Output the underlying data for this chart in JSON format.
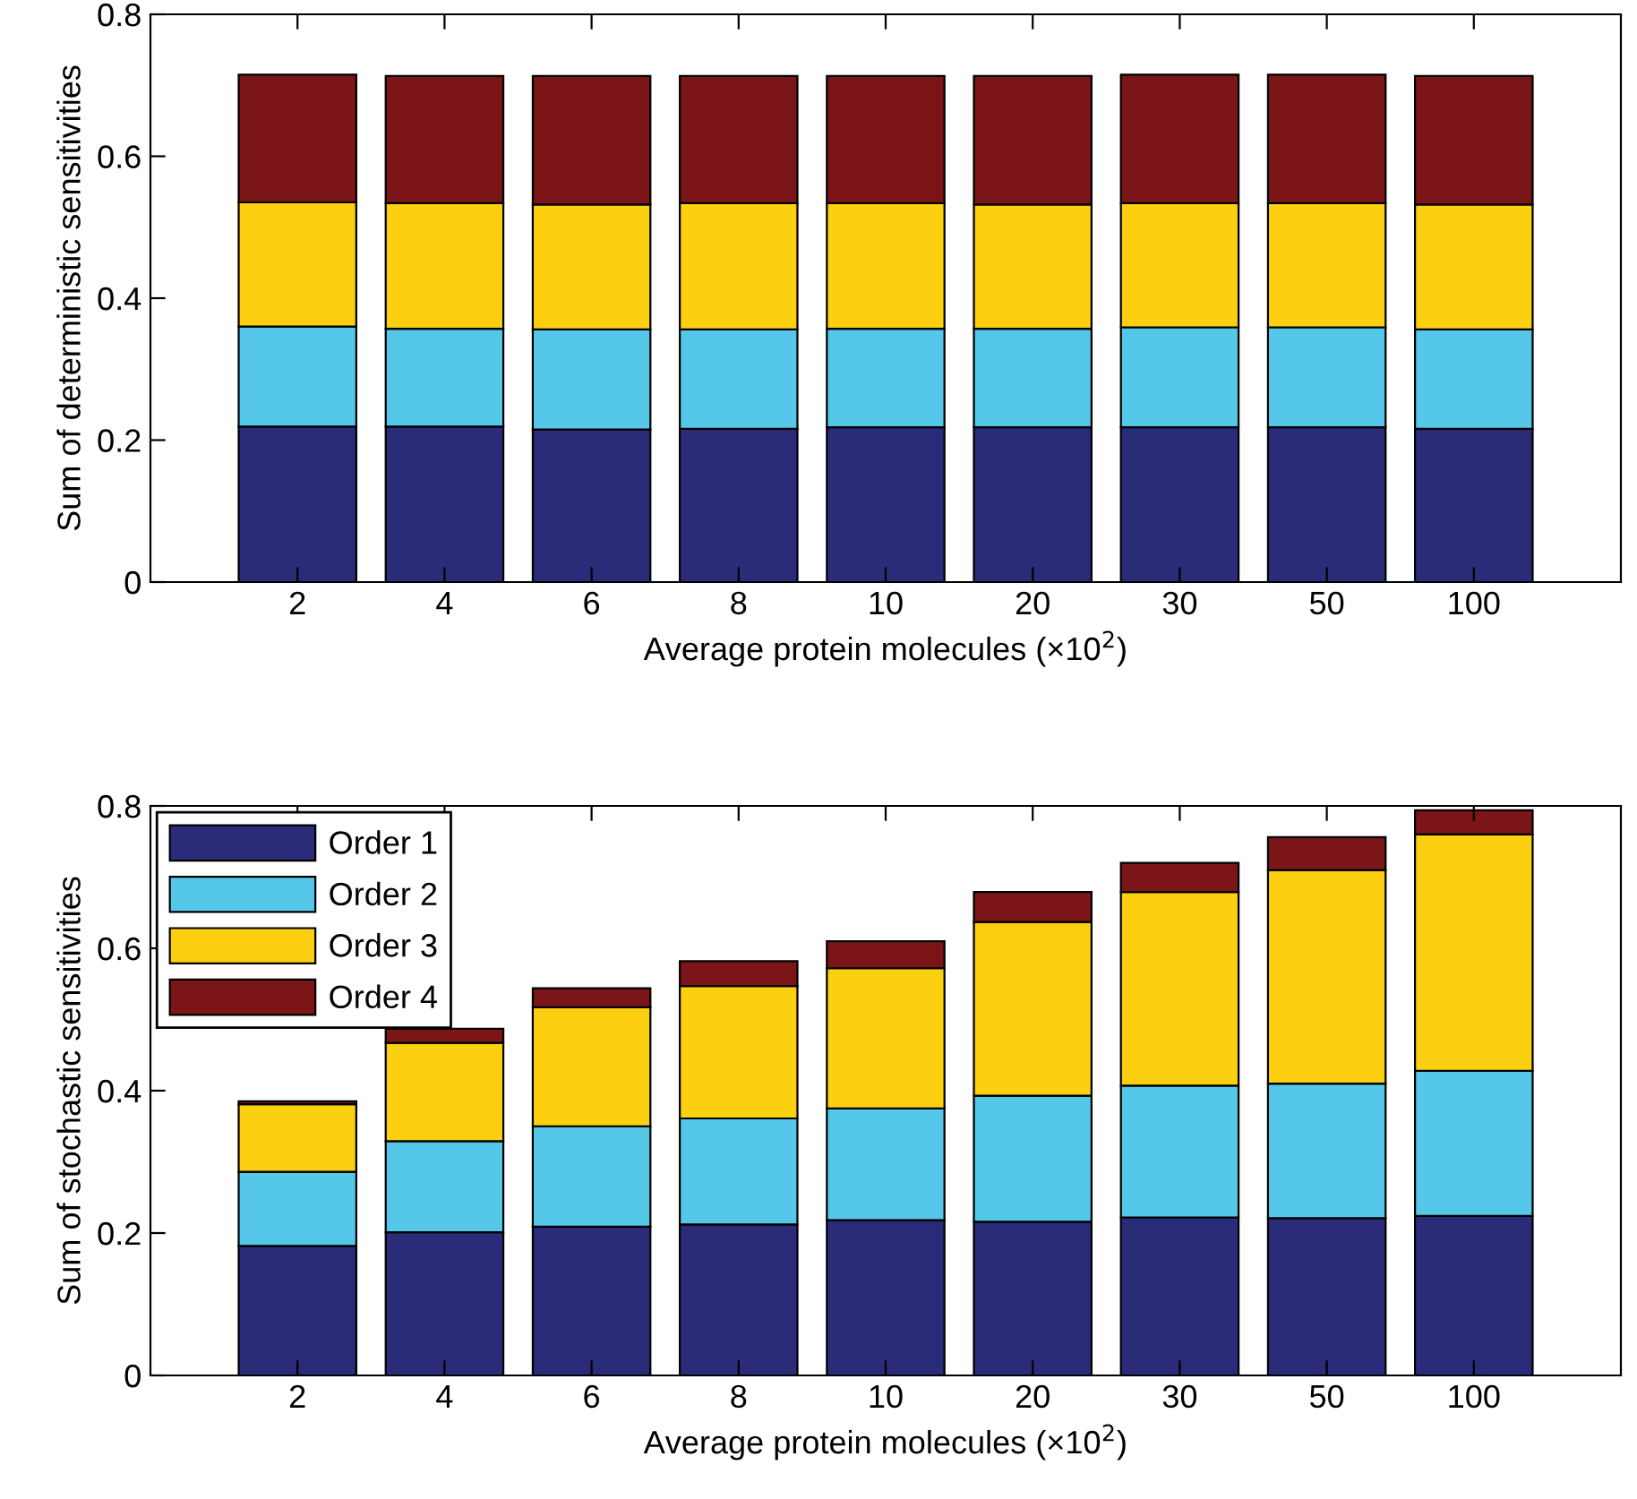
{
  "chart_data": [
    {
      "type": "bar",
      "stacked": true,
      "ylabel": "Sum of deterministic sensitivities",
      "xlabel": "Average protein molecules (×10$^{2}$)",
      "categories": [
        "2",
        "4",
        "6",
        "8",
        "10",
        "20",
        "30",
        "50",
        "100"
      ],
      "ylim": [
        0,
        0.8
      ],
      "yticks": [
        0,
        0.2,
        0.4,
        0.6,
        0.8
      ],
      "legend": false,
      "grid": false,
      "series": [
        {
          "color": "#2a2c7a",
          "values": [
            0.219,
            0.219,
            0.215,
            0.216,
            0.218,
            0.218,
            0.218,
            0.218,
            0.216
          ]
        },
        {
          "color": "#55c8ea",
          "values": [
            0.141,
            0.138,
            0.141,
            0.14,
            0.139,
            0.139,
            0.141,
            0.141,
            0.14
          ]
        },
        {
          "color": "#fccf10",
          "values": [
            0.175,
            0.177,
            0.176,
            0.178,
            0.177,
            0.175,
            0.175,
            0.175,
            0.176
          ]
        },
        {
          "color": "#7b1517",
          "values": [
            0.18,
            0.179,
            0.181,
            0.179,
            0.179,
            0.181,
            0.181,
            0.181,
            0.181
          ]
        }
      ]
    },
    {
      "type": "bar",
      "stacked": true,
      "ylabel": "Sum of stochastic sensitivities",
      "xlabel": "Average protein molecules (×10$^{2}$)",
      "categories": [
        "2",
        "4",
        "6",
        "8",
        "10",
        "20",
        "30",
        "50",
        "100"
      ],
      "ylim": [
        0,
        0.8
      ],
      "yticks": [
        0,
        0.2,
        0.4,
        0.6,
        0.8
      ],
      "legend": "top left",
      "grid": false,
      "series": [
        {
          "name": "Order 1",
          "color": "#2a2c7a",
          "values": [
            0.182,
            0.201,
            0.209,
            0.212,
            0.218,
            0.216,
            0.222,
            0.221,
            0.224
          ]
        },
        {
          "name": "Order 2",
          "color": "#55c8ea",
          "values": [
            0.104,
            0.128,
            0.141,
            0.149,
            0.157,
            0.177,
            0.185,
            0.189,
            0.204
          ]
        },
        {
          "name": "Order 3",
          "color": "#fccf10",
          "values": [
            0.095,
            0.138,
            0.167,
            0.186,
            0.197,
            0.244,
            0.272,
            0.3,
            0.332
          ]
        },
        {
          "name": "Order 4",
          "color": "#7b1517",
          "values": [
            0.004,
            0.02,
            0.027,
            0.035,
            0.038,
            0.042,
            0.041,
            0.046,
            0.034
          ]
        }
      ]
    }
  ]
}
